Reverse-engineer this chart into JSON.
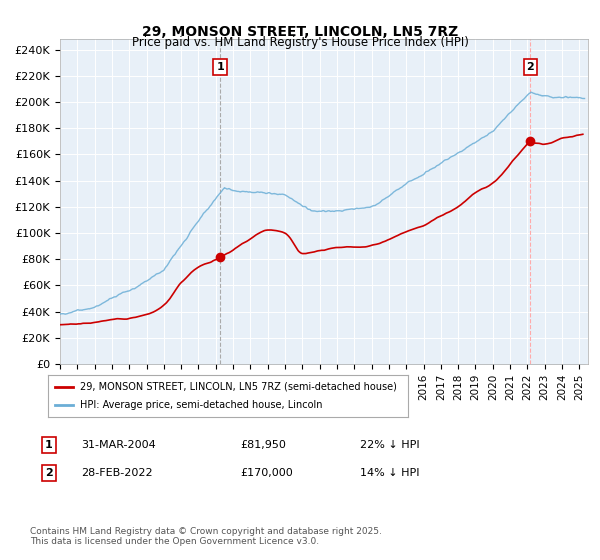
{
  "title": "29, MONSON STREET, LINCOLN, LN5 7RZ",
  "subtitle": "Price paid vs. HM Land Registry's House Price Index (HPI)",
  "ylabel_ticks": [
    "£0",
    "£20K",
    "£40K",
    "£60K",
    "£80K",
    "£100K",
    "£120K",
    "£140K",
    "£160K",
    "£180K",
    "£200K",
    "£220K",
    "£240K"
  ],
  "ytick_values": [
    0,
    20000,
    40000,
    60000,
    80000,
    100000,
    120000,
    140000,
    160000,
    180000,
    200000,
    220000,
    240000
  ],
  "ylim": [
    0,
    248000
  ],
  "xlim_start": 1995.0,
  "xlim_end": 2025.5,
  "hpi_color": "#6baed6",
  "hpi_fill_color": "#ddeeff",
  "price_color": "#cc0000",
  "marker1_date": 2004.25,
  "marker1_price": 81950,
  "marker1_label": "31-MAR-2004",
  "marker1_value": "£81,950",
  "marker1_hpi": "22% ↓ HPI",
  "marker2_date": 2022.17,
  "marker2_price": 170000,
  "marker2_label": "28-FEB-2022",
  "marker2_value": "£170,000",
  "marker2_hpi": "14% ↓ HPI",
  "legend_line1": "29, MONSON STREET, LINCOLN, LN5 7RZ (semi-detached house)",
  "legend_line2": "HPI: Average price, semi-detached house, Lincoln",
  "footnote": "Contains HM Land Registry data © Crown copyright and database right 2025.\nThis data is licensed under the Open Government Licence v3.0.",
  "background_color": "#ffffff",
  "plot_bg_color": "#e8f0f8",
  "grid_color": "#ffffff"
}
